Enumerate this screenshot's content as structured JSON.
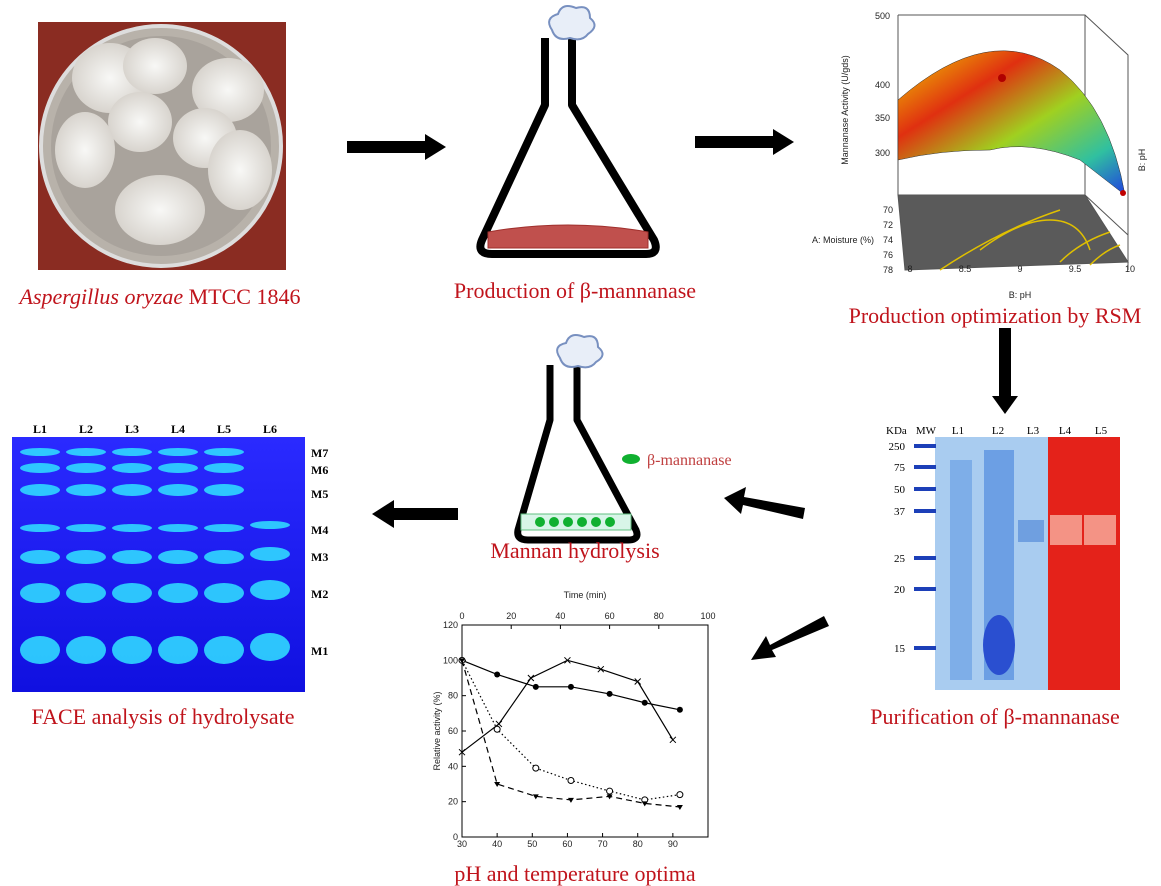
{
  "captions": {
    "organism": {
      "species": "Aspergillus oryzae",
      "strain": "MTCC 1846"
    },
    "production": "Production of β-mannanase",
    "optimization": "Production optimization by RSM",
    "face": "FACE analysis of hydrolysate",
    "hydrolysis": "Mannan hydrolysis",
    "purification": "Purification of β-mannanase",
    "optima": "pH and temperature optima"
  },
  "flask_label": "β-mannanase",
  "rsm": {
    "z_label": "Mannanase Activity (U/gds)",
    "z_ticks": [
      500,
      400,
      350,
      300
    ],
    "moisture_label": "A: Moisture (%)",
    "moisture_ticks": [
      70,
      72,
      74,
      76,
      78
    ],
    "ph_label": "B: pH",
    "ph_ticks": [
      8,
      8.5,
      9,
      9.5,
      10
    ],
    "side_label": "B: pH"
  },
  "sds_gel": {
    "unit": "KDa",
    "lanes": [
      "MW",
      "L1",
      "L2",
      "L3",
      "L4",
      "L5"
    ],
    "markers": [
      250,
      75,
      50,
      37,
      25,
      20,
      15
    ]
  },
  "face_gel": {
    "lanes": [
      "L1",
      "L2",
      "L3",
      "L4",
      "L5",
      "L6"
    ],
    "bands": [
      "M7",
      "M6",
      "M5",
      "M4",
      "M3",
      "M2",
      "M1"
    ]
  },
  "chart_data": {
    "type": "line",
    "x2_label": "Time (min)",
    "y_label": "Relative activity (%)",
    "xlim": [
      30,
      100
    ],
    "xticks": [
      30,
      40,
      50,
      60,
      70,
      80,
      90
    ],
    "x2lim": [
      0,
      100
    ],
    "x2ticks": [
      0,
      20,
      40,
      60,
      80,
      100
    ],
    "ylim": [
      0,
      120
    ],
    "yticks": [
      0,
      20,
      40,
      60,
      80,
      100,
      120
    ],
    "series": [
      {
        "marker": "filled-circle",
        "dash": "solid",
        "color": "#000000",
        "x": [
          30,
          40,
          51,
          61,
          72,
          82,
          92
        ],
        "values": [
          100,
          92,
          85,
          85,
          81,
          76,
          72
        ]
      },
      {
        "marker": "cross",
        "dash": "solid",
        "color": "#000000",
        "x": [
          30,
          40.5,
          49.6,
          60,
          69.5,
          80,
          90
        ],
        "values": [
          48,
          64,
          90,
          100,
          95,
          88,
          55
        ]
      },
      {
        "marker": "open-circle",
        "dash": "dotted",
        "color": "#000000",
        "x": [
          30,
          40,
          51,
          61,
          72,
          82,
          92
        ],
        "values": [
          100,
          61,
          39,
          32,
          26,
          21,
          24
        ]
      },
      {
        "marker": "triangle",
        "dash": "dashed",
        "color": "#000000",
        "x": [
          30,
          40,
          51,
          61,
          72,
          82,
          92
        ],
        "values": [
          100,
          30,
          23,
          21,
          23,
          19,
          17
        ]
      }
    ]
  }
}
